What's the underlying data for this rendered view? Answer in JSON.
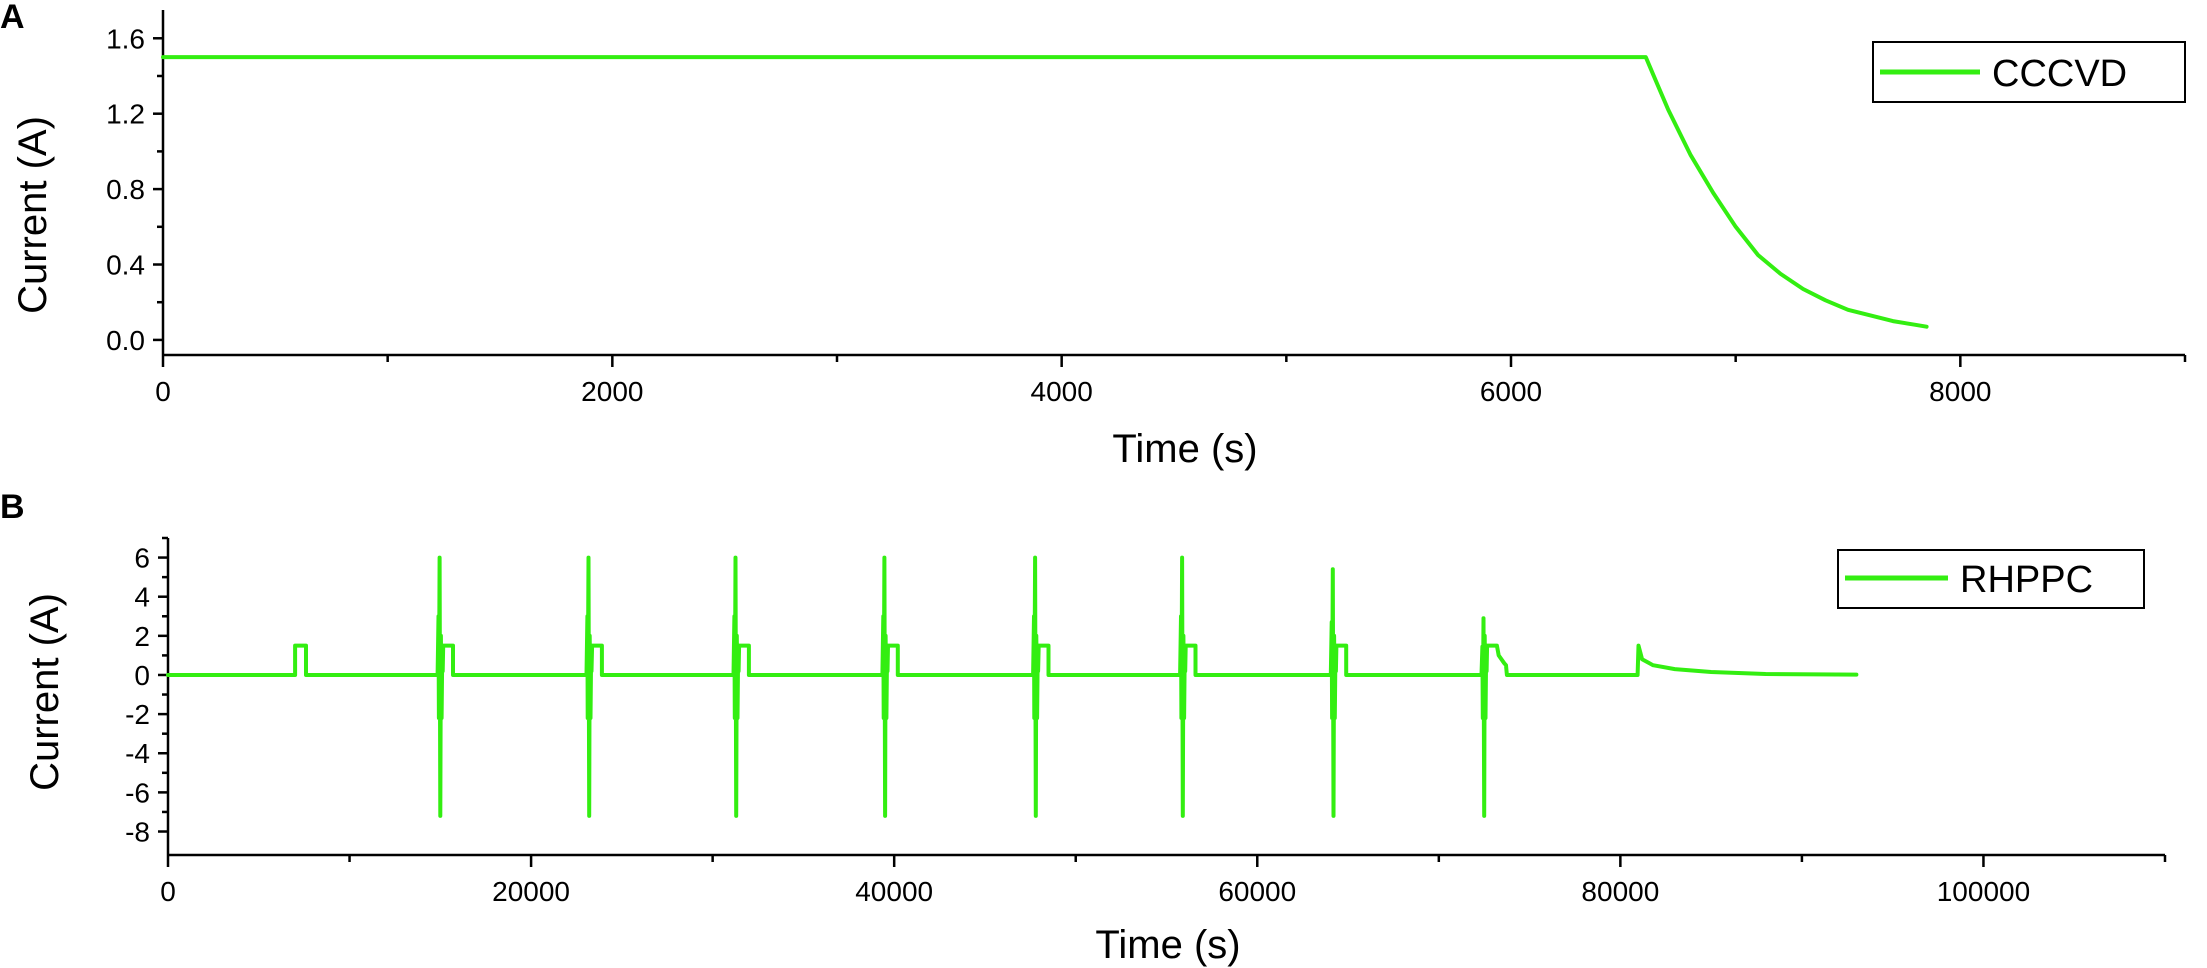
{
  "chart_data": [
    {
      "panel_label": "A",
      "type": "line",
      "xlabel": "Time (s)",
      "ylabel": "Current (A)",
      "xlim": [
        0,
        9000
      ],
      "ylim": [
        -0.08,
        1.75
      ],
      "xticks": [
        0,
        2000,
        4000,
        6000,
        8000
      ],
      "xtick_labels": [
        "0",
        "2000",
        "4000",
        "6000",
        "8000"
      ],
      "yticks": [
        0.0,
        0.4,
        0.8,
        1.2,
        1.6
      ],
      "ytick_labels": [
        "0.0",
        "0.4",
        "0.8",
        "1.2",
        "1.6"
      ],
      "legend_position": "top-right",
      "grid": false,
      "series": [
        {
          "name": "CCCVD",
          "color": "#33ee11",
          "points": [
            [
              0,
              1.5
            ],
            [
              6600,
              1.5
            ],
            [
              6650,
              1.36
            ],
            [
              6700,
              1.22
            ],
            [
              6800,
              0.98
            ],
            [
              6900,
              0.78
            ],
            [
              7000,
              0.6
            ],
            [
              7100,
              0.45
            ],
            [
              7200,
              0.35
            ],
            [
              7300,
              0.27
            ],
            [
              7400,
              0.21
            ],
            [
              7500,
              0.16
            ],
            [
              7600,
              0.13
            ],
            [
              7700,
              0.1
            ],
            [
              7800,
              0.08
            ],
            [
              7850,
              0.07
            ]
          ]
        }
      ]
    },
    {
      "panel_label": "B",
      "type": "line",
      "xlabel": "Time (s)",
      "ylabel": "Current (A)",
      "xlim": [
        0,
        110000
      ],
      "ylim": [
        -9.2,
        7.0
      ],
      "xticks": [
        0,
        20000,
        40000,
        60000,
        80000,
        100000
      ],
      "xtick_labels": [
        "0",
        "20000",
        "40000",
        "60000",
        "80000",
        "100000"
      ],
      "yticks": [
        -8,
        -6,
        -4,
        -2,
        0,
        2,
        4,
        6
      ],
      "ytick_labels": [
        "-8",
        "-6",
        "-4",
        "-2",
        "0",
        "2",
        "4",
        "6"
      ],
      "legend_position": "top-right",
      "grid": false,
      "series": [
        {
          "name": "RHPPC",
          "color": "#33ee11",
          "initial_pulse": {
            "start": 7000,
            "end": 7600,
            "level": 1.5
          },
          "pulse_cycles": [
            {
              "t": 15000,
              "peak": 6.0,
              "trough": -7.2
            },
            {
              "t": 23200,
              "peak": 6.0,
              "trough": -7.2
            },
            {
              "t": 31300,
              "peak": 6.0,
              "trough": -7.2
            },
            {
              "t": 39500,
              "peak": 6.0,
              "trough": -7.2
            },
            {
              "t": 47800,
              "peak": 6.0,
              "trough": -7.2
            },
            {
              "t": 55900,
              "peak": 6.0,
              "trough": -7.2
            },
            {
              "t": 64200,
              "peak": 5.4,
              "trough": -7.2
            },
            {
              "t": 72500,
              "peak": 2.9,
              "trough": -7.2
            }
          ],
          "final_pulse": {
            "t": 81000,
            "level": 1.5,
            "tail_end": 93000
          },
          "end_time": 93000
        }
      ]
    }
  ]
}
